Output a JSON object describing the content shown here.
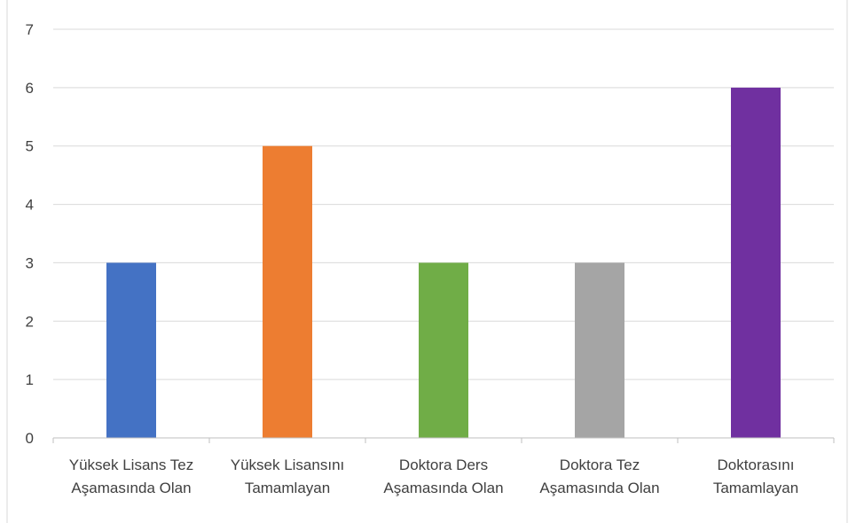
{
  "chart_data": {
    "type": "bar",
    "categories": [
      [
        "Yüksek Lisans Tez",
        "Aşamasında Olan"
      ],
      [
        "Yüksek Lisansını",
        "Tamamlayan"
      ],
      [
        "Doktora Ders",
        "Aşamasında Olan"
      ],
      [
        "Doktora Tez",
        "Aşamasında Olan"
      ],
      [
        "Doktorasını",
        "Tamamlayan"
      ]
    ],
    "values": [
      3,
      5,
      3,
      3,
      6
    ],
    "colors": [
      "#4472c4",
      "#ed7d31",
      "#70ad47",
      "#a5a5a5",
      "#7030a0"
    ],
    "ylim": [
      0,
      7
    ],
    "yticks": [
      "0",
      "1",
      "2",
      "3",
      "4",
      "5",
      "6",
      "7"
    ],
    "grid": true,
    "legend": "none",
    "title": "",
    "xlabel": "",
    "ylabel": ""
  }
}
